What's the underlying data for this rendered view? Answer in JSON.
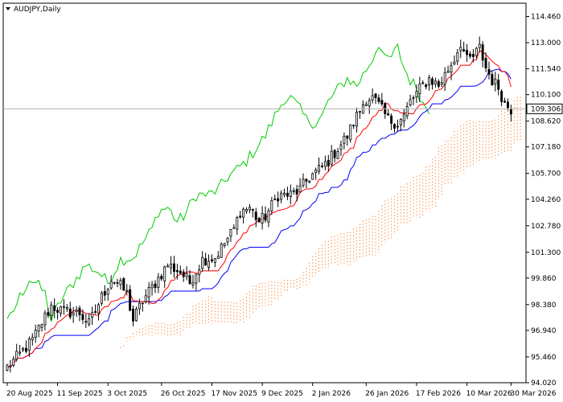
{
  "chart_data": {
    "type": "candlestick",
    "title": "AUDJPY,Daily",
    "symbol": "AUDJPY",
    "timeframe": "Daily",
    "indicator": "Ichimoku Kinko Hyo",
    "current_price": 109.306,
    "current_price_label": "109.306",
    "ylim": [
      94.02,
      115.2
    ],
    "y_ticks": [
      114.46,
      113.0,
      111.54,
      110.1,
      108.62,
      107.18,
      105.7,
      104.26,
      102.78,
      101.3,
      99.86,
      98.38,
      96.94,
      95.46,
      94.02
    ],
    "y_tick_labels": [
      "114.460",
      "113.000",
      "111.540",
      "110.100",
      "108.620",
      "107.180",
      "105.700",
      "104.260",
      "102.780",
      "101.300",
      "99.860",
      "98.380",
      "96.940",
      "95.460",
      "94.020"
    ],
    "x_tick_labels": [
      "20 Aug 2025",
      "11 Sep 2025",
      "3 Oct 2025",
      "26 Oct 2025",
      "17 Nov 2025",
      "9 Dec 2025",
      "2 Jan 2026",
      "26 Jan 2026",
      "17 Feb 2026",
      "10 Mar 2026",
      "30 Mar 2026"
    ],
    "x_tick_bars": [
      0,
      16,
      32,
      49,
      65,
      81,
      97,
      114,
      130,
      146,
      160
    ],
    "anchor_closes": [
      [
        0,
        94.9
      ],
      [
        4,
        95.6
      ],
      [
        8,
        96.4
      ],
      [
        12,
        97.7
      ],
      [
        14,
        98.3
      ],
      [
        18,
        98.0
      ],
      [
        23,
        97.9
      ],
      [
        26,
        97.3
      ],
      [
        30,
        98.8
      ],
      [
        33,
        99.8
      ],
      [
        35,
        99.6
      ],
      [
        38,
        99.0
      ],
      [
        40,
        97.5
      ],
      [
        43,
        98.6
      ],
      [
        47,
        99.6
      ],
      [
        51,
        100.6
      ],
      [
        55,
        100.2
      ],
      [
        58,
        99.6
      ],
      [
        62,
        100.9
      ],
      [
        66,
        101.0
      ],
      [
        69,
        101.8
      ],
      [
        72,
        102.6
      ],
      [
        74,
        103.6
      ],
      [
        77,
        103.8
      ],
      [
        80,
        103.0
      ],
      [
        82,
        103.3
      ],
      [
        86,
        104.5
      ],
      [
        90,
        104.5
      ],
      [
        93,
        104.8
      ],
      [
        96,
        105.5
      ],
      [
        99,
        105.9
      ],
      [
        102,
        106.4
      ],
      [
        105,
        107.1
      ],
      [
        108,
        107.8
      ],
      [
        111,
        108.9
      ],
      [
        114,
        109.9
      ],
      [
        116,
        109.9
      ],
      [
        118,
        109.5
      ],
      [
        121,
        108.7
      ],
      [
        124,
        108.5
      ],
      [
        126,
        108.9
      ],
      [
        128,
        109.7
      ],
      [
        131,
        110.4
      ],
      [
        134,
        111.0
      ],
      [
        137,
        110.6
      ],
      [
        139,
        111.2
      ],
      [
        142,
        112.1
      ],
      [
        144,
        113.0
      ],
      [
        146,
        112.0
      ],
      [
        148,
        112.2
      ],
      [
        150,
        112.7
      ],
      [
        152,
        111.6
      ],
      [
        154,
        110.9
      ],
      [
        156,
        110.5
      ],
      [
        158,
        109.6
      ],
      [
        160,
        109.3
      ]
    ],
    "bar_count": 161,
    "kijun_extension_bars": 4,
    "cloud_shift_bars": 26,
    "colors": {
      "background": "#ffffff",
      "axis": "#000000",
      "candle": "#000000",
      "tenkan_sen": "#ff0000",
      "kijun_sen": "#0000ff",
      "chikou_span": "#00cc00",
      "kumo_cloud": "#ff8c3a",
      "current_price_line": "#b0b0b0",
      "price_label_bg": "#ffffff"
    }
  }
}
